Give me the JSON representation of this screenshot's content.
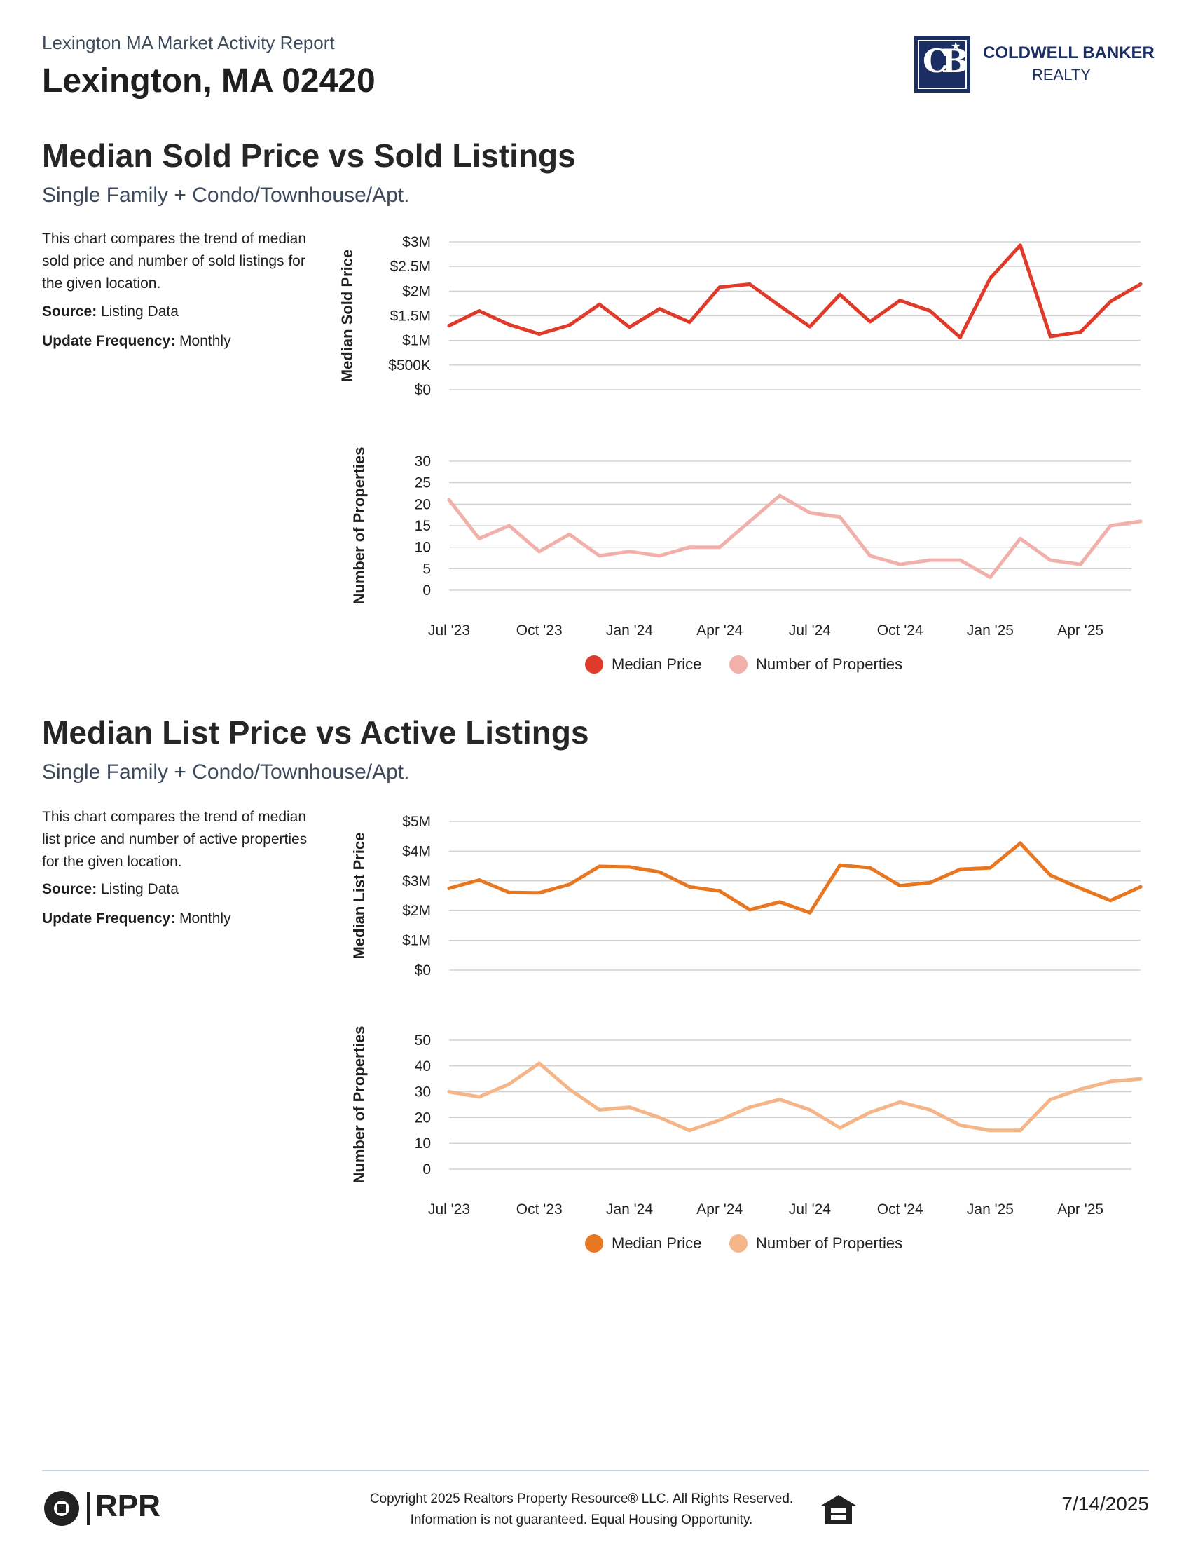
{
  "header": {
    "report_title": "Lexington MA Market Activity Report",
    "location": "Lexington, MA 02420",
    "brand": {
      "line1": "COLDWELL BANKER",
      "line2": "REALTY",
      "mark": "CB",
      "color": "#1b2e63"
    }
  },
  "sections": [
    {
      "title": "Median Sold Price vs Sold Listings",
      "subtitle": "Single Family + Condo/Townhouse/Apt.",
      "description": "This chart compares the trend of median sold price and number of sold listings for the given location.",
      "source_label": "Source:",
      "source_value": " Listing Data",
      "frequency_label": "Update Frequency:",
      "frequency_value": " Monthly"
    },
    {
      "title": "Median List Price vs Active Listings",
      "subtitle": "Single Family + Condo/Townhouse/Apt.",
      "description": "This chart compares the trend of median list price and number of active properties for the given location.",
      "source_label": "Source:",
      "source_value": " Listing Data",
      "frequency_label": "Update Frequency:",
      "frequency_value": " Monthly"
    }
  ],
  "chart_data": [
    {
      "type": "line",
      "x": [
        "Jul '23",
        "Aug '23",
        "Sep '23",
        "Oct '23",
        "Nov '23",
        "Dec '23",
        "Jan '24",
        "Feb '24",
        "Mar '24",
        "Apr '24",
        "May '24",
        "Jun '24",
        "Jul '24",
        "Aug '24",
        "Sep '24",
        "Oct '24",
        "Nov '24",
        "Dec '24",
        "Jan '25",
        "Feb '25",
        "Mar '25",
        "Apr '25",
        "May '25",
        "Jun '25"
      ],
      "xticks": [
        "Jul '23",
        "Oct '23",
        "Jan '24",
        "Apr '24",
        "Jul '24",
        "Oct '24",
        "Jan '25",
        "Apr '25"
      ],
      "panels": [
        {
          "ylabel": "Median Sold Price",
          "yticks": [
            "$3M",
            "$2.5M",
            "$2M",
            "$1.5M",
            "$1M",
            "$500K",
            "$0"
          ],
          "ylim": [
            0,
            3000000
          ],
          "series": [
            {
              "name": "Median Price",
              "color": "#df3a2a",
              "values": [
                1300000,
                1600000,
                1320000,
                1130000,
                1310000,
                1730000,
                1270000,
                1640000,
                1370000,
                2080000,
                2140000,
                1700000,
                1280000,
                1930000,
                1380000,
                1810000,
                1600000,
                1060000,
                2260000,
                2930000,
                1080000,
                1170000,
                1790000,
                2140000
              ]
            }
          ]
        },
        {
          "ylabel": "Number of Properties",
          "yticks": [
            "30",
            "25",
            "20",
            "15",
            "10",
            "5",
            "0"
          ],
          "ylim": [
            0,
            30
          ],
          "series": [
            {
              "name": "Number of Properties",
              "color": "#f1b1aa",
              "values": [
                21,
                12,
                15,
                9,
                13,
                8,
                9,
                8,
                10,
                10,
                16,
                22,
                18,
                17,
                8,
                6,
                7,
                7,
                3,
                12,
                7,
                6,
                15,
                16
              ]
            }
          ]
        }
      ],
      "legend": [
        {
          "name": "Median Price",
          "color": "#df3a2a"
        },
        {
          "name": "Number of Properties",
          "color": "#f1b1aa"
        }
      ]
    },
    {
      "type": "line",
      "x": [
        "Jul '23",
        "Aug '23",
        "Sep '23",
        "Oct '23",
        "Nov '23",
        "Dec '23",
        "Jan '24",
        "Feb '24",
        "Mar '24",
        "Apr '24",
        "May '24",
        "Jun '24",
        "Jul '24",
        "Aug '24",
        "Sep '24",
        "Oct '24",
        "Nov '24",
        "Dec '24",
        "Jan '25",
        "Feb '25",
        "Mar '25",
        "Apr '25",
        "May '25",
        "Jun '25"
      ],
      "xticks": [
        "Jul '23",
        "Oct '23",
        "Jan '24",
        "Apr '24",
        "Jul '24",
        "Oct '24",
        "Jan '25",
        "Apr '25"
      ],
      "panels": [
        {
          "ylabel": "Median List Price",
          "yticks": [
            "$5M",
            "$4M",
            "$3M",
            "$2M",
            "$1M",
            "$0"
          ],
          "ylim": [
            0,
            5000000
          ],
          "series": [
            {
              "name": "Median Price",
              "color": "#e87722",
              "values": [
                2750000,
                3030000,
                2610000,
                2600000,
                2880000,
                3490000,
                3470000,
                3300000,
                2800000,
                2660000,
                2030000,
                2290000,
                1930000,
                3530000,
                3440000,
                2840000,
                2940000,
                3390000,
                3440000,
                4270000,
                3190000,
                2750000,
                2340000,
                2800000
              ]
            }
          ]
        },
        {
          "ylabel": "Number of Properties",
          "yticks": [
            "50",
            "40",
            "30",
            "20",
            "10",
            "0"
          ],
          "ylim": [
            0,
            50
          ],
          "series": [
            {
              "name": "Number of Properties",
              "color": "#f4b688",
              "values": [
                30,
                28,
                33,
                41,
                31,
                23,
                24,
                20,
                15,
                19,
                24,
                27,
                23,
                16,
                22,
                26,
                23,
                17,
                15,
                15,
                27,
                31,
                34,
                35
              ]
            }
          ]
        }
      ],
      "legend": [
        {
          "name": "Median Price",
          "color": "#e87722"
        },
        {
          "name": "Number of Properties",
          "color": "#f4b688"
        }
      ]
    }
  ],
  "footer": {
    "logo_text": "RPR",
    "copyright_line1": "Copyright 2025 Realtors Property Resource® LLC. All Rights Reserved.",
    "copyright_line2": "Information is not guaranteed. Equal Housing Opportunity.",
    "date": "7/14/2025"
  }
}
